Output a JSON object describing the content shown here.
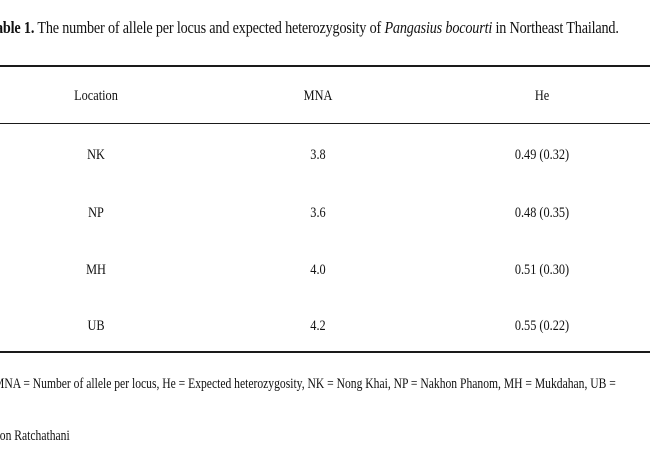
{
  "caption": {
    "lead": "able 1.",
    "text_before_species": " The number of allele per locus and expected heterozygosity of ",
    "species": "Pangasius  bocourti",
    "text_after_species": "  in  Northeast Thailand."
  },
  "table": {
    "headers": [
      "Location",
      "MNA",
      "He"
    ],
    "rows": [
      {
        "location": "NK",
        "mna": "3.8",
        "he": "0.49 (0.32)"
      },
      {
        "location": "NP",
        "mna": "3.6",
        "he": "0.48 (0.35)"
      },
      {
        "location": "MH",
        "mna": "4.0",
        "he": "0.51 (0.30)"
      },
      {
        "location": "UB",
        "mna": "4.2",
        "he": "0.55 (0.22)"
      }
    ]
  },
  "footnote": {
    "line1": "MNA = Number of allele per locus, He = Expected heterozygosity, NK = Nong Khai, NP = Nakhon  Phanom, MH = Mukdahan, UB =",
    "line2": "bon Ratchathani"
  }
}
